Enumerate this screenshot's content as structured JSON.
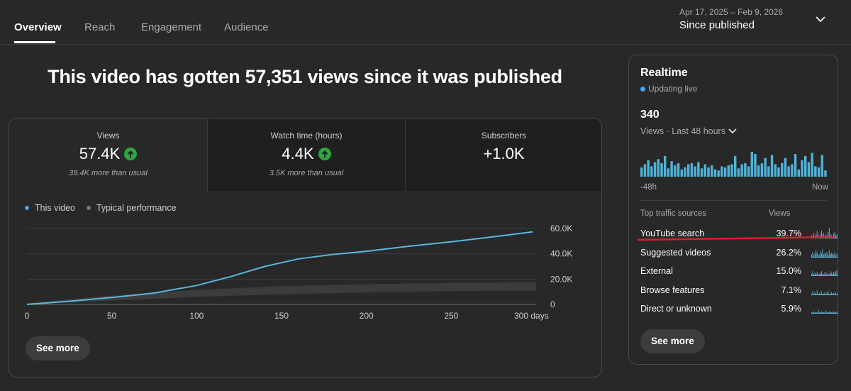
{
  "tabs": [
    {
      "label": "Overview",
      "active": true
    },
    {
      "label": "Reach",
      "active": false
    },
    {
      "label": "Engagement",
      "active": false
    },
    {
      "label": "Audience",
      "active": false
    }
  ],
  "date_range": {
    "range": "Apr 17, 2025 – Feb 9, 2026",
    "label": "Since published",
    "icon": "chevron-down-icon"
  },
  "headline": "This video has gotten 57,351 views since it was published",
  "metrics": [
    {
      "label": "Views",
      "value": "57.4K",
      "trend": "up",
      "note": "39.4K more than usual"
    },
    {
      "label": "Watch time (hours)",
      "value": "4.4K",
      "trend": "up",
      "note": "3.5K more than usual"
    },
    {
      "label": "Subscribers",
      "value": "+1.0K",
      "trend": null,
      "note": ""
    }
  ],
  "legend": {
    "this_video": "This video",
    "typical": "Typical performance"
  },
  "colors": {
    "accent": "#3ea6ff",
    "series_line": "#5bb6dc",
    "typical_band": "#3c3c3c",
    "up_badge": "#2ba640",
    "annotation_red": "#e01b2f",
    "spark": "#4fb3d9"
  },
  "chart_data": {
    "type": "line",
    "xticks": [
      "0",
      "50",
      "100",
      "150",
      "200",
      "250",
      "300 days"
    ],
    "yticks": [
      "0",
      "20.0K",
      "40.0K",
      "60.0K"
    ],
    "xlim": [
      0,
      300
    ],
    "ylim": [
      0,
      60000
    ],
    "grid": true,
    "series": [
      {
        "name": "This video",
        "x": [
          0,
          25,
          50,
          75,
          100,
          120,
          140,
          160,
          180,
          200,
          225,
          250,
          275,
          298
        ],
        "y": [
          0,
          2500,
          5500,
          9000,
          15000,
          22000,
          30000,
          36000,
          39500,
          42000,
          46000,
          49500,
          53500,
          57351
        ]
      },
      {
        "name": "Typical performance",
        "band": true,
        "x": [
          0,
          50,
          100,
          150,
          200,
          250,
          300
        ],
        "low": [
          0,
          3000,
          6000,
          8000,
          9500,
          10500,
          11000
        ],
        "high": [
          1000,
          7000,
          11500,
          14500,
          16000,
          17000,
          17500
        ]
      }
    ]
  },
  "see_more": "See more",
  "realtime": {
    "title": "Realtime",
    "live": "Updating live",
    "count": "340",
    "period": "Views · Last 48 hours",
    "axis_start": "-48h",
    "axis_end": "Now",
    "bars": [
      9,
      12,
      16,
      10,
      14,
      17,
      13,
      20,
      8,
      15,
      11,
      13,
      7,
      9,
      12,
      13,
      10,
      14,
      8,
      12,
      9,
      11,
      7,
      6,
      10,
      9,
      11,
      12,
      20,
      8,
      12,
      13,
      10,
      24,
      22,
      11,
      13,
      18,
      10,
      21,
      12,
      9,
      13,
      18,
      10,
      12,
      22,
      7,
      16,
      20,
      14,
      23,
      10,
      9,
      21,
      6
    ],
    "traffic_head": "Top traffic sources",
    "views_head": "Views",
    "traffic_sources": [
      {
        "name": "YouTube search",
        "pct": "39.7%",
        "spark": [
          3,
          2,
          6,
          2,
          4,
          8,
          3,
          2,
          5,
          9,
          3,
          6,
          2,
          4,
          3,
          7,
          12,
          4,
          3,
          2,
          5,
          7,
          3,
          4
        ]
      },
      {
        "name": "Suggested videos",
        "pct": "26.2%",
        "spark": [
          3,
          6,
          2,
          4,
          8,
          5,
          3,
          2,
          7,
          4,
          9,
          3,
          5,
          4,
          6,
          2,
          8,
          3,
          5,
          4,
          3,
          6,
          2,
          4
        ]
      },
      {
        "name": "External",
        "pct": "15.0%",
        "spark": [
          2,
          5,
          1,
          3,
          2,
          4,
          1,
          2,
          3,
          5,
          2,
          1,
          4,
          2,
          3,
          1,
          2,
          5,
          3,
          2,
          4,
          3,
          5,
          6
        ]
      },
      {
        "name": "Browse features",
        "pct": "7.1%",
        "spark": [
          1,
          4,
          0,
          3,
          1,
          5,
          0,
          2,
          1,
          4,
          0,
          1,
          3,
          0,
          2,
          5,
          1,
          0,
          3,
          1,
          2,
          0,
          3,
          1
        ]
      },
      {
        "name": "Direct or unknown",
        "pct": "5.9%",
        "spark": [
          1,
          0,
          2,
          0,
          1,
          0,
          4,
          1,
          0,
          2,
          1,
          0,
          1,
          3,
          0,
          1,
          2,
          0,
          1,
          0,
          2,
          1,
          0,
          2
        ]
      }
    ],
    "see_more": "See more"
  }
}
